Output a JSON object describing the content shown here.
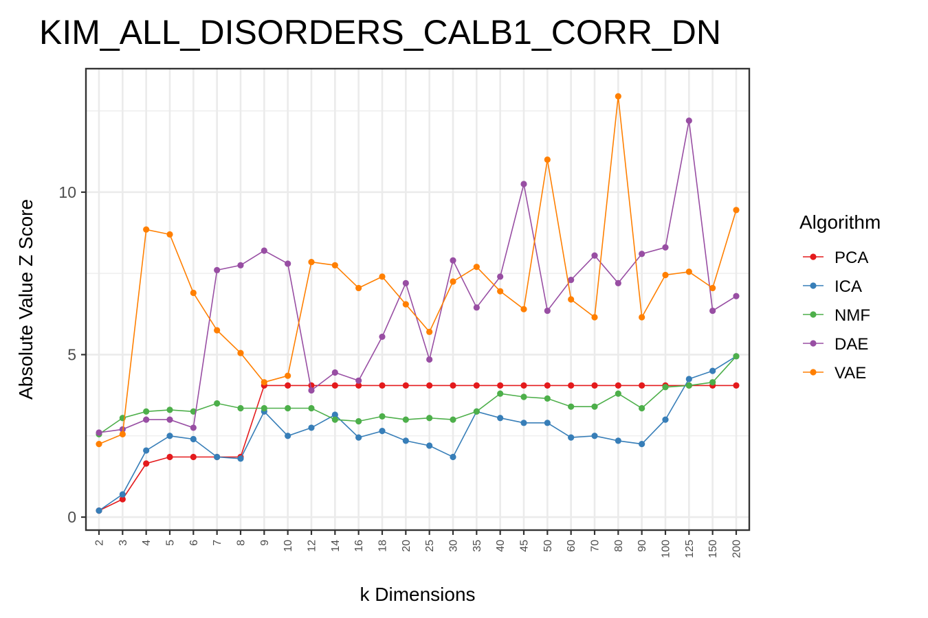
{
  "chart_data": {
    "type": "line",
    "title": "KIM_ALL_DISORDERS_CALB1_CORR_DN",
    "xlabel": "k Dimensions",
    "ylabel": "Absolute Value Z Score",
    "categories": [
      "2",
      "3",
      "4",
      "5",
      "6",
      "7",
      "8",
      "9",
      "10",
      "12",
      "14",
      "16",
      "18",
      "20",
      "25",
      "30",
      "35",
      "40",
      "45",
      "50",
      "60",
      "70",
      "80",
      "90",
      "100",
      "125",
      "150",
      "200"
    ],
    "yticks": [
      0,
      5,
      10
    ],
    "ylim": [
      -0.4,
      13.8
    ],
    "grid": true,
    "legend": {
      "title": "Algorithm",
      "position": "right"
    },
    "series": [
      {
        "name": "PCA",
        "color": "#e41a1c",
        "values": [
          0.2,
          0.55,
          1.65,
          1.85,
          1.85,
          1.85,
          1.85,
          4.05,
          4.05,
          4.05,
          4.05,
          4.05,
          4.05,
          4.05,
          4.05,
          4.05,
          4.05,
          4.05,
          4.05,
          4.05,
          4.05,
          4.05,
          4.05,
          4.05,
          4.05,
          4.05,
          4.05,
          4.05
        ]
      },
      {
        "name": "ICA",
        "color": "#377eb8",
        "values": [
          0.2,
          0.7,
          2.05,
          2.5,
          2.4,
          1.85,
          1.8,
          3.25,
          2.5,
          2.75,
          3.15,
          2.45,
          2.65,
          2.35,
          2.2,
          1.85,
          3.25,
          3.05,
          2.9,
          2.9,
          2.45,
          2.5,
          2.35,
          2.25,
          3.0,
          4.25,
          4.5,
          4.95
        ]
      },
      {
        "name": "NMF",
        "color": "#4daf4a",
        "values": [
          2.55,
          3.05,
          3.25,
          3.3,
          3.25,
          3.5,
          3.35,
          3.35,
          3.35,
          3.35,
          3.0,
          2.95,
          3.1,
          3.0,
          3.05,
          3.0,
          3.25,
          3.8,
          3.7,
          3.65,
          3.4,
          3.4,
          3.8,
          3.35,
          4.0,
          4.05,
          4.15,
          4.95
        ]
      },
      {
        "name": "DAE",
        "color": "#984ea3",
        "values": [
          2.6,
          2.7,
          3.0,
          3.0,
          2.75,
          7.6,
          7.75,
          8.2,
          7.8,
          3.9,
          4.45,
          4.2,
          5.55,
          7.2,
          4.85,
          7.9,
          6.45,
          7.4,
          10.25,
          6.35,
          7.3,
          8.05,
          7.2,
          8.1,
          8.3,
          12.2,
          6.35,
          6.8
        ]
      },
      {
        "name": "VAE",
        "color": "#ff7f00",
        "values": [
          2.25,
          2.55,
          8.85,
          8.7,
          6.9,
          5.75,
          5.05,
          4.15,
          4.35,
          7.85,
          7.75,
          7.05,
          7.4,
          6.55,
          5.7,
          7.25,
          7.7,
          6.95,
          6.4,
          11.0,
          6.7,
          6.15,
          12.95,
          6.15,
          7.45,
          7.55,
          7.05,
          9.45
        ]
      }
    ]
  }
}
